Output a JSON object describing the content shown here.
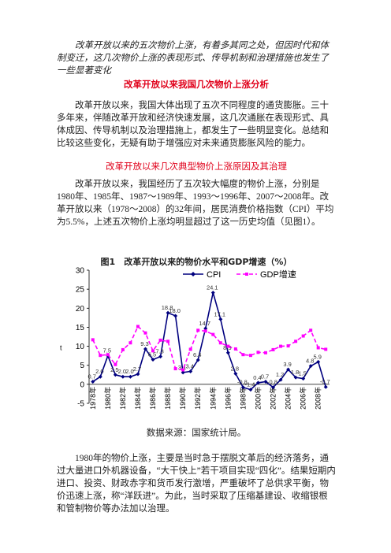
{
  "document": {
    "intro": "改革开放以来的五次物价上涨，有着多其同之处，但因时代和体制变迁，这几次物价上涨的表现形式、传导机制和治理措施也发生了一些显著变化",
    "heading1": "改革开放以来我国几次物价上涨分析",
    "paragraph1": "改革开放以来，我国大体出现了五次不同程度的通货膨胀。三十多年来，伴随改革开放和经济快速发展，这几次通胀在表现形式、具体成因、传导机制以及治理措施上，都发生了一些明显变化。总结和比较这些变化，无疑有助于增强应对未来通货膨胀风险的能力。",
    "heading2": "改革开放以来几次典型物价上涨原因及其治理",
    "paragraph2": "改革开放以来，我国经历了五次较大幅度的物价上涨，分别是1980年、1985年、1987～1989年、1993～1996年、2007～2008年。改革开放以来（1978～2008）的32年间，居民消费价格指数（CPI）平均为5.5%，上述五次物价上涨均明显超过了这一历史均值（见图1）。",
    "figure_title": "图1　改革开放以来的物价水平和GDP增速（%）",
    "source": "数据来源：国家统计局。",
    "paragraph3": "1980年的物价上涨，主要是当时急于摆脱文革后的经济落务，通过大量进口外机器设备，“大干快上”若干项目实现“四化”。结果短期内进口、投资、财政赤字和货币发行激增，严重破坏了总供求平衡，物价迅速上涨，称“洋跃进”。为此，当时采取了压缩基建设、收缩银根和管制物价等办法加以治理。"
  },
  "chart_data": {
    "type": "line",
    "y_label": "t",
    "categories": [
      "1978年",
      null,
      "1980年",
      null,
      "1982年",
      null,
      "1984年",
      null,
      "1986年",
      null,
      "1988年",
      null,
      "1990年",
      null,
      "1992年",
      null,
      "1994年",
      null,
      "1996年",
      null,
      "1998年",
      null,
      "2000年",
      null,
      "2002年",
      null,
      "2004年",
      null,
      "2006年",
      null,
      "2008年",
      null
    ],
    "series": [
      {
        "name": "CPI",
        "color": "#00007f",
        "values": [
          0.7,
          2,
          7.5,
          2.5,
          2,
          2,
          2.7,
          9.3,
          6.5,
          7.3,
          18.8,
          18,
          3.1,
          3.4,
          6.4,
          14.7,
          24.1,
          17.1,
          8.3,
          2.8,
          -0.8,
          -1.4,
          0.4,
          0.7,
          -0.8,
          1.2,
          3.9,
          1.8,
          1.5,
          4.8,
          5.9,
          -0.7
        ],
        "value_labels": [
          "0.7",
          "2.0",
          "7.5",
          "2.5",
          "2.0",
          "2.0",
          "2.7",
          "9.3",
          "6.5",
          "7.3",
          "18.8",
          "18.0",
          "3.1",
          "3.4",
          "6.4",
          "14.7",
          "24.1",
          "17.1",
          "8.3",
          "2.8",
          "-0.8",
          "-1.4",
          "0.4",
          "0.7",
          "-0.8",
          "1.2",
          "3.9",
          "1.8",
          "1.5",
          "4.8",
          "5.9",
          "-0.7"
        ]
      },
      {
        "name": "GDP增速",
        "color": "#ff00ff",
        "values": [
          11.7,
          7.6,
          7.8,
          5.2,
          9.1,
          10.9,
          15.2,
          13.5,
          8.8,
          11.6,
          11.3,
          4.1,
          3.8,
          9.2,
          14.2,
          14,
          13.1,
          10.9,
          10,
          9.3,
          7.8,
          7.6,
          8.4,
          8.3,
          9.1,
          10,
          10.1,
          11.3,
          12.7,
          14.2,
          9.6,
          9.2
        ]
      }
    ],
    "ylim": [
      -5,
      30
    ],
    "yticks": [
      -5,
      0,
      5,
      10,
      15,
      20,
      25,
      30
    ],
    "grid": false
  }
}
